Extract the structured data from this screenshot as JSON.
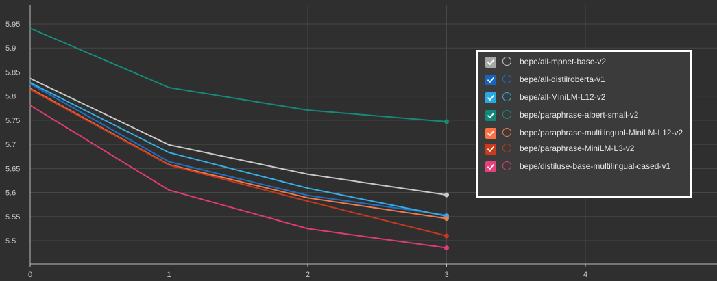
{
  "chart_data": {
    "type": "line",
    "x": [
      0,
      1,
      2,
      3
    ],
    "xlim": [
      0,
      5
    ],
    "ylim": [
      5.45,
      5.965
    ],
    "x_ticks": [
      0,
      1,
      2,
      3,
      4
    ],
    "y_ticks": [
      5.5,
      5.55,
      5.6,
      5.65,
      5.7,
      5.75,
      5.8,
      5.85,
      5.9,
      5.95
    ],
    "grid": true,
    "legend_position": "top-right",
    "series": [
      {
        "name": "bepe/all-mpnet-base-v2",
        "color": "#c8c8c8",
        "checkbox_color": "#a8a8a8",
        "values": [
          5.837,
          5.699,
          5.638,
          5.595
        ]
      },
      {
        "name": "bepe/all-distilroberta-v1",
        "color": "#1f6fc2",
        "checkbox_color": "#1565c0",
        "values": [
          5.826,
          5.664,
          5.594,
          5.553
        ]
      },
      {
        "name": "bepe/all-MiniLM-L12-v2",
        "color": "#33aee6",
        "checkbox_color": "#29a9e3",
        "values": [
          5.828,
          5.683,
          5.609,
          5.551
        ]
      },
      {
        "name": "bepe/paraphrase-albert-small-v2",
        "color": "#168a78",
        "checkbox_color": "#0f8a7a",
        "values": [
          5.941,
          5.818,
          5.771,
          5.747
        ]
      },
      {
        "name": "bepe/paraphrase-multilingual-MiniLM-L12-v2",
        "color": "#f07a4a",
        "checkbox_color": "#ff7043",
        "values": [
          5.816,
          5.658,
          5.589,
          5.546
        ]
      },
      {
        "name": "bepe/paraphrase-MiniLM-L3-v2",
        "color": "#c8381e",
        "checkbox_color": "#cc3a1c",
        "values": [
          5.814,
          5.657,
          5.582,
          5.51
        ]
      },
      {
        "name": "bepe/distiluse-base-multilingual-cased-v1",
        "color": "#e03a7a",
        "checkbox_color": "#e8407c",
        "values": [
          5.781,
          5.605,
          5.525,
          5.485
        ]
      }
    ]
  }
}
